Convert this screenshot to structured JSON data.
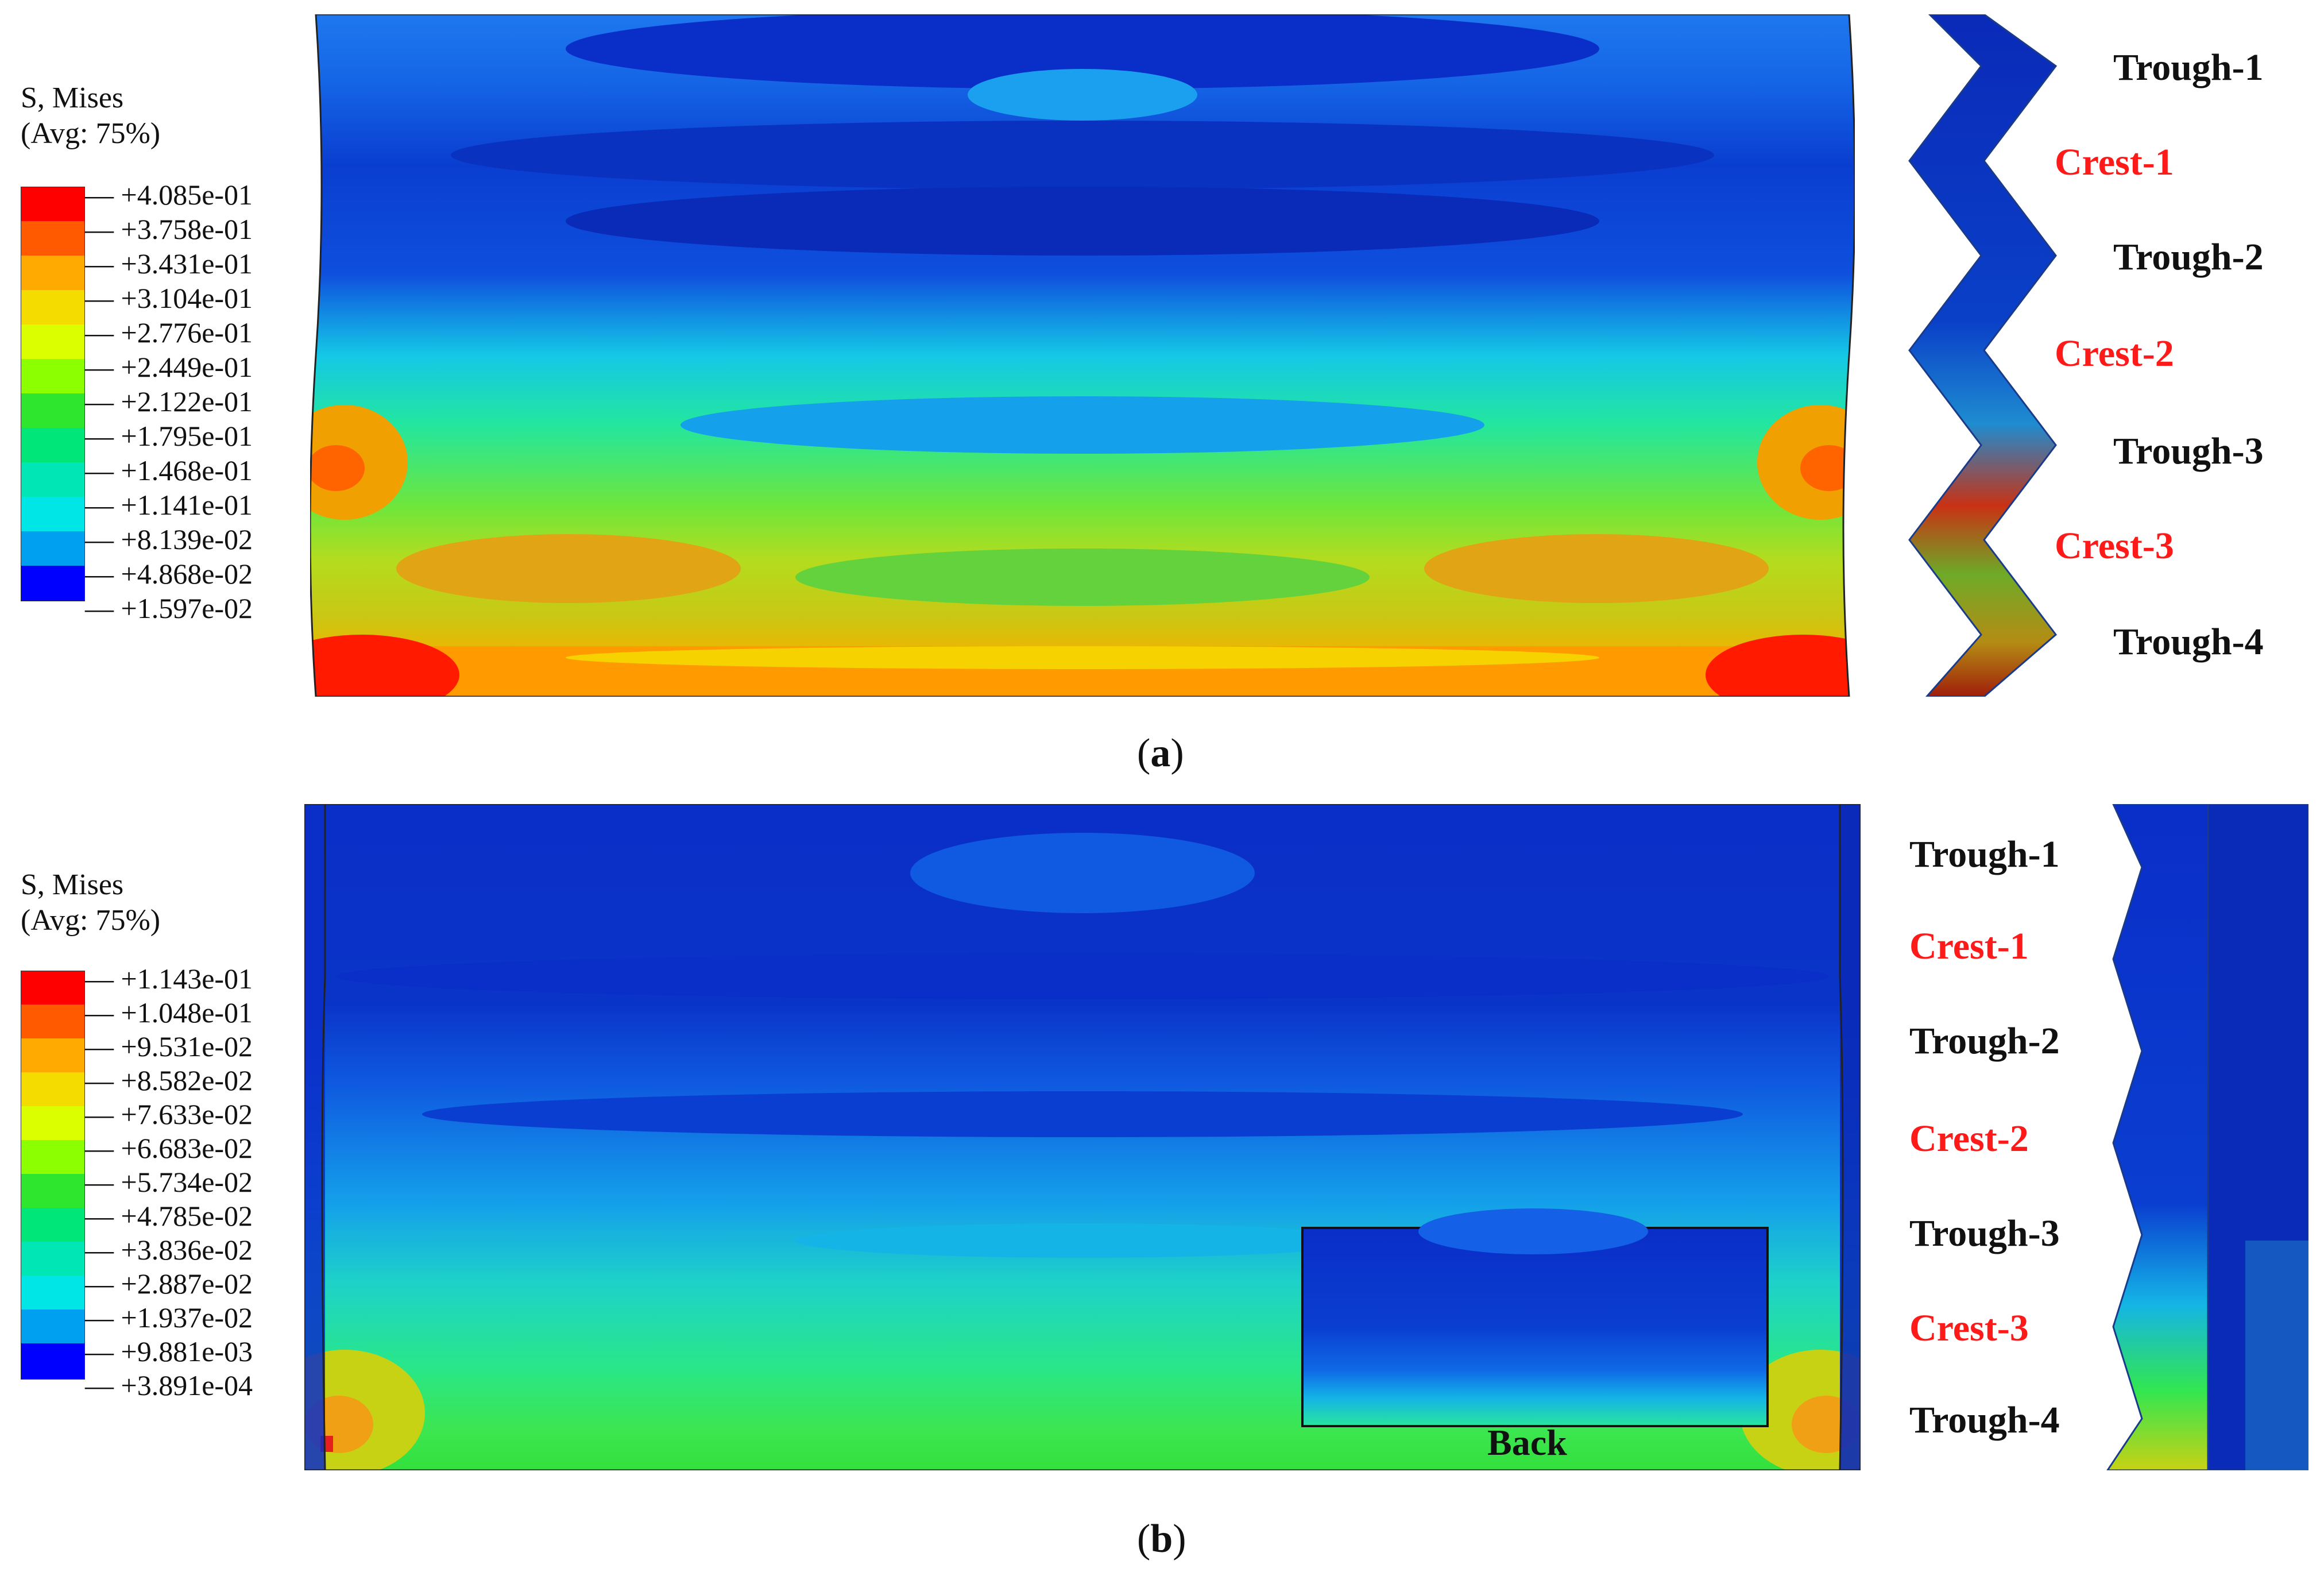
{
  "panels": [
    {
      "id": "a",
      "legend": {
        "title_line1": "S, Mises",
        "title_line2": "(Avg: 75%)",
        "labels": [
          "+4.085e-01",
          "+3.758e-01",
          "+3.431e-01",
          "+3.104e-01",
          "+2.776e-01",
          "+2.449e-01",
          "+2.122e-01",
          "+1.795e-01",
          "+1.468e-01",
          "+1.141e-01",
          "+8.139e-02",
          "+4.868e-02",
          "+1.597e-02"
        ]
      },
      "side_labels": [
        {
          "text": "Trough-1",
          "kind": "trough"
        },
        {
          "text": "Crest-1",
          "kind": "crest"
        },
        {
          "text": "Trough-2",
          "kind": "trough"
        },
        {
          "text": "Crest-2",
          "kind": "crest"
        },
        {
          "text": "Trough-3",
          "kind": "trough"
        },
        {
          "text": "Crest-3",
          "kind": "crest"
        },
        {
          "text": "Trough-4",
          "kind": "trough"
        }
      ],
      "caption_open": "(",
      "caption_letter": "a",
      "caption_close": ")"
    },
    {
      "id": "b",
      "legend": {
        "title_line1": "S, Mises",
        "title_line2": "(Avg: 75%)",
        "labels": [
          "+1.143e-01",
          "+1.048e-01",
          "+9.531e-02",
          "+8.582e-02",
          "+7.633e-02",
          "+6.683e-02",
          "+5.734e-02",
          "+4.785e-02",
          "+3.836e-02",
          "+2.887e-02",
          "+1.937e-02",
          "+9.881e-03",
          "+3.891e-04"
        ]
      },
      "side_labels": [
        {
          "text": "Trough-1",
          "kind": "trough"
        },
        {
          "text": "Crest-1",
          "kind": "crest"
        },
        {
          "text": "Trough-2",
          "kind": "trough"
        },
        {
          "text": "Crest-2",
          "kind": "crest"
        },
        {
          "text": "Trough-3",
          "kind": "trough"
        },
        {
          "text": "Crest-3",
          "kind": "crest"
        },
        {
          "text": "Trough-4",
          "kind": "trough"
        }
      ],
      "inset_label": "Back",
      "caption_open": "(",
      "caption_letter": "b",
      "caption_close": ")"
    }
  ],
  "colors": {
    "crest_label": "#ff1a1a",
    "trough_label": "#111111",
    "contour_scale": [
      "#ff0000",
      "#ff5a00",
      "#ffaa00",
      "#f5dc00",
      "#dcff00",
      "#8cff00",
      "#2ee62e",
      "#00e678",
      "#00e6b4",
      "#00e6e6",
      "#00a0f0",
      "#0050f0",
      "#0000ff"
    ]
  }
}
